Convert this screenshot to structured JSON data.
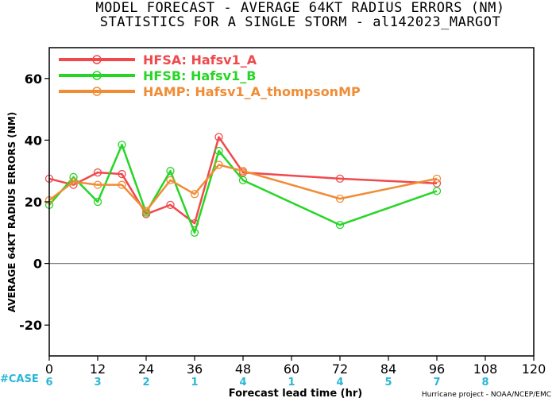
{
  "header": {
    "title": "MODEL FORECAST - AVERAGE 64KT RADIUS ERRORS (NM)",
    "subtitle": "STATISTICS FOR A SINGLE STORM - al142023_MARGOT"
  },
  "footer": {
    "case_label": "#CASE",
    "credit": "Hurricane project - NOAA/NCEP/EMC"
  },
  "colors": {
    "hfsa": "#f0494c",
    "hfsb": "#26d626",
    "hamp": "#f08c36",
    "case": "#29b6d6",
    "zero_line": "#808080"
  },
  "chart_data": {
    "type": "line",
    "title": "MODEL FORECAST - AVERAGE 64KT RADIUS ERRORS (NM)",
    "subtitle": "STATISTICS FOR A SINGLE STORM - al142023_MARGOT",
    "xlabel": "Forecast lead time (hr)",
    "ylabel": "AVERAGE 64KT RADIUS ERRORS (NM)",
    "xlim": [
      0,
      120
    ],
    "ylim": [
      -30,
      70
    ],
    "xticks": [
      0,
      12,
      24,
      36,
      48,
      60,
      72,
      84,
      96,
      108,
      120
    ],
    "yticks": [
      -20,
      0,
      20,
      40,
      60
    ],
    "legend_position": "top-left",
    "series": [
      {
        "name": "HFSA: Hafsv1_A",
        "x": [
          0,
          6,
          12,
          18,
          24,
          30,
          36,
          42,
          48,
          72,
          96
        ],
        "y": [
          27.5,
          25.5,
          29.5,
          29,
          16,
          19,
          13,
          41,
          29.5,
          27.5,
          26
        ]
      },
      {
        "name": "HFSB: Hafsv1_B",
        "x": [
          0,
          6,
          12,
          18,
          24,
          30,
          36,
          42,
          48,
          72,
          96
        ],
        "y": [
          19,
          28,
          20,
          38.5,
          16.5,
          30,
          10,
          36.5,
          27,
          12.5,
          23.5
        ]
      },
      {
        "name": "HAMP: Hafsv1_A_thompsonMP",
        "x": [
          0,
          6,
          12,
          18,
          24,
          30,
          36,
          42,
          48,
          72,
          96
        ],
        "y": [
          20.5,
          26.5,
          25.5,
          25.5,
          17,
          27,
          22.5,
          32,
          30,
          21,
          27.5
        ]
      }
    ],
    "case_counts": [
      {
        "x": 0,
        "label": "6"
      },
      {
        "x": 12,
        "label": "3"
      },
      {
        "x": 24,
        "label": "2"
      },
      {
        "x": 36,
        "label": "1"
      },
      {
        "x": 48,
        "label": "4"
      },
      {
        "x": 60,
        "label": "1"
      },
      {
        "x": 72,
        "label": "4"
      },
      {
        "x": 84,
        "label": "5"
      },
      {
        "x": 96,
        "label": "7"
      },
      {
        "x": 108,
        "label": "8"
      }
    ]
  }
}
